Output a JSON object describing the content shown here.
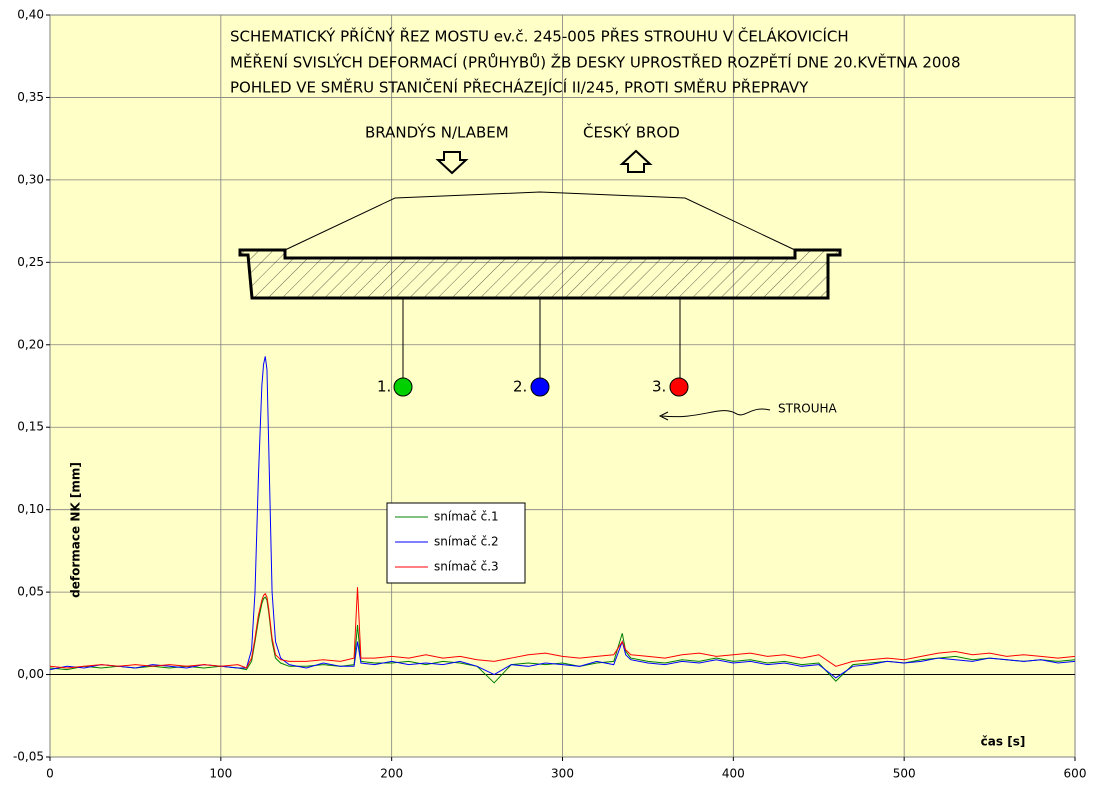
{
  "chart_data": {
    "type": "line",
    "annotations": [
      "SCHEMATICKÝ PŘÍČNÝ ŘEZ MOSTU ev.č. 245-005 PŘES STROUHU V ČELÁKOVICÍCH",
      "MĚŘENÍ SVISLÝCH DEFORMACÍ (PRŮHYBŮ) ŽB DESKY UPROSTŘED ROZPĚTÍ DNE 20.KVĚTNA 2008",
      "POHLED VE SMĚRU STANIČENÍ PŘECHÁZEJÍCÍ II/245, PROTI SMĚRU PŘEPRAVY",
      "BRANDÝS N/LABEM",
      "ČESKÝ BROD",
      "STROUHA",
      "1.",
      "2.",
      "3."
    ],
    "x_label": "čas [s]",
    "y_label": "deformace NK [mm]",
    "x": [
      0,
      10,
      20,
      30,
      40,
      50,
      60,
      70,
      80,
      90,
      100,
      110,
      115,
      118,
      120,
      122,
      124,
      125,
      126,
      127,
      128,
      130,
      132,
      135,
      140,
      150,
      160,
      170,
      178,
      180,
      182,
      190,
      200,
      210,
      220,
      230,
      240,
      250,
      260,
      270,
      280,
      290,
      300,
      310,
      320,
      330,
      335,
      337,
      340,
      350,
      360,
      370,
      380,
      390,
      400,
      410,
      420,
      430,
      440,
      450,
      460,
      470,
      480,
      490,
      500,
      510,
      520,
      530,
      540,
      550,
      560,
      570,
      580,
      590,
      600
    ],
    "series": [
      {
        "name": "snímač č.1",
        "color": "#008000",
        "values": [
          0.004,
          0.003,
          0.005,
          0.004,
          0.005,
          0.004,
          0.005,
          0.004,
          0.005,
          0.004,
          0.005,
          0.004,
          0.003,
          0.008,
          0.02,
          0.033,
          0.043,
          0.046,
          0.047,
          0.045,
          0.038,
          0.02,
          0.01,
          0.007,
          0.005,
          0.005,
          0.006,
          0.005,
          0.006,
          0.03,
          0.008,
          0.007,
          0.007,
          0.008,
          0.006,
          0.008,
          0.007,
          0.005,
          -0.005,
          0.006,
          0.007,
          0.006,
          0.007,
          0.005,
          0.007,
          0.008,
          0.025,
          0.014,
          0.01,
          0.008,
          0.007,
          0.009,
          0.008,
          0.01,
          0.008,
          0.009,
          0.007,
          0.008,
          0.006,
          0.007,
          -0.004,
          0.006,
          0.007,
          0.008,
          0.007,
          0.009,
          0.01,
          0.011,
          0.009,
          0.01,
          0.009,
          0.008,
          0.009,
          0.008,
          0.009
        ]
      },
      {
        "name": "snímač č.2",
        "color": "#0000ff",
        "values": [
          0.003,
          0.005,
          0.004,
          0.006,
          0.005,
          0.004,
          0.006,
          0.005,
          0.004,
          0.006,
          0.005,
          0.004,
          0.004,
          0.015,
          0.05,
          0.12,
          0.175,
          0.188,
          0.193,
          0.185,
          0.14,
          0.05,
          0.02,
          0.01,
          0.006,
          0.004,
          0.007,
          0.005,
          0.005,
          0.02,
          0.007,
          0.006,
          0.008,
          0.006,
          0.007,
          0.006,
          0.008,
          0.005,
          0.0,
          0.006,
          0.005,
          0.007,
          0.006,
          0.005,
          0.008,
          0.006,
          0.02,
          0.012,
          0.009,
          0.007,
          0.006,
          0.008,
          0.007,
          0.009,
          0.007,
          0.008,
          0.006,
          0.007,
          0.005,
          0.006,
          -0.002,
          0.005,
          0.006,
          0.008,
          0.007,
          0.008,
          0.01,
          0.009,
          0.008,
          0.01,
          0.009,
          0.008,
          0.009,
          0.007,
          0.008
        ]
      },
      {
        "name": "snímač č.3",
        "color": "#ff0000",
        "values": [
          0.005,
          0.004,
          0.005,
          0.006,
          0.005,
          0.006,
          0.005,
          0.006,
          0.005,
          0.006,
          0.005,
          0.006,
          0.004,
          0.01,
          0.022,
          0.036,
          0.045,
          0.048,
          0.049,
          0.047,
          0.04,
          0.022,
          0.012,
          0.009,
          0.008,
          0.008,
          0.009,
          0.008,
          0.01,
          0.053,
          0.01,
          0.01,
          0.011,
          0.01,
          0.012,
          0.01,
          0.011,
          0.009,
          0.008,
          0.01,
          0.012,
          0.013,
          0.011,
          0.01,
          0.011,
          0.012,
          0.02,
          0.015,
          0.012,
          0.011,
          0.01,
          0.012,
          0.013,
          0.011,
          0.012,
          0.013,
          0.011,
          0.012,
          0.01,
          0.012,
          0.005,
          0.008,
          0.009,
          0.01,
          0.009,
          0.011,
          0.013,
          0.014,
          0.012,
          0.013,
          0.011,
          0.012,
          0.011,
          0.01,
          0.011
        ]
      }
    ],
    "xlim": [
      0,
      600
    ],
    "xticks": [
      0,
      100,
      200,
      300,
      400,
      500,
      600
    ],
    "ylim": [
      -0.05,
      0.4
    ],
    "yticks": [
      {
        "value": -0.05,
        "label": "-0,05"
      },
      {
        "value": 0,
        "label": "0,00"
      },
      {
        "value": 0.05,
        "label": "0,05"
      },
      {
        "value": 0.1,
        "label": "0,10"
      },
      {
        "value": 0.15,
        "label": "0,15"
      },
      {
        "value": 0.2,
        "label": "0,20"
      },
      {
        "value": 0.25,
        "label": "0,25"
      },
      {
        "value": 0.3,
        "label": "0,30"
      },
      {
        "value": 0.35,
        "label": "0,35"
      },
      {
        "value": 0.4,
        "label": "0,40"
      }
    ],
    "grid": true
  }
}
